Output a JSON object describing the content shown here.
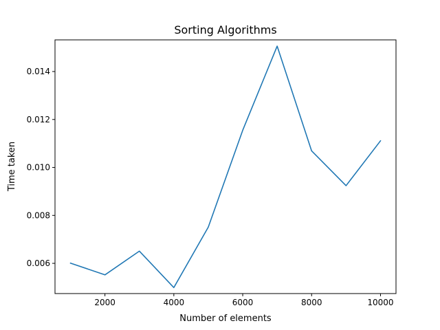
{
  "chart_data": {
    "type": "line",
    "title": "Sorting Algorithms",
    "xlabel": "Number of elements",
    "ylabel": "Time taken",
    "xlim": [
      550,
      10450
    ],
    "ylim": [
      0.00474,
      0.01532
    ],
    "xticks": [
      2000,
      4000,
      6000,
      8000,
      10000
    ],
    "xtick_labels": [
      "2000",
      "4000",
      "6000",
      "8000",
      "10000"
    ],
    "yticks": [
      0.006,
      0.008,
      0.01,
      0.012,
      0.014
    ],
    "ytick_labels": [
      "0.006",
      "0.008",
      "0.010",
      "0.012",
      "0.014"
    ],
    "grid": false,
    "series": [
      {
        "color": "#1f77b4",
        "x": [
          1000,
          2000,
          3000,
          4000,
          5000,
          6000,
          7000,
          8000,
          9000,
          10000
        ],
        "y": [
          0.00601,
          0.00552,
          0.00651,
          0.00499,
          0.00751,
          0.01155,
          0.01506,
          0.01069,
          0.00924,
          0.01111
        ]
      }
    ]
  }
}
